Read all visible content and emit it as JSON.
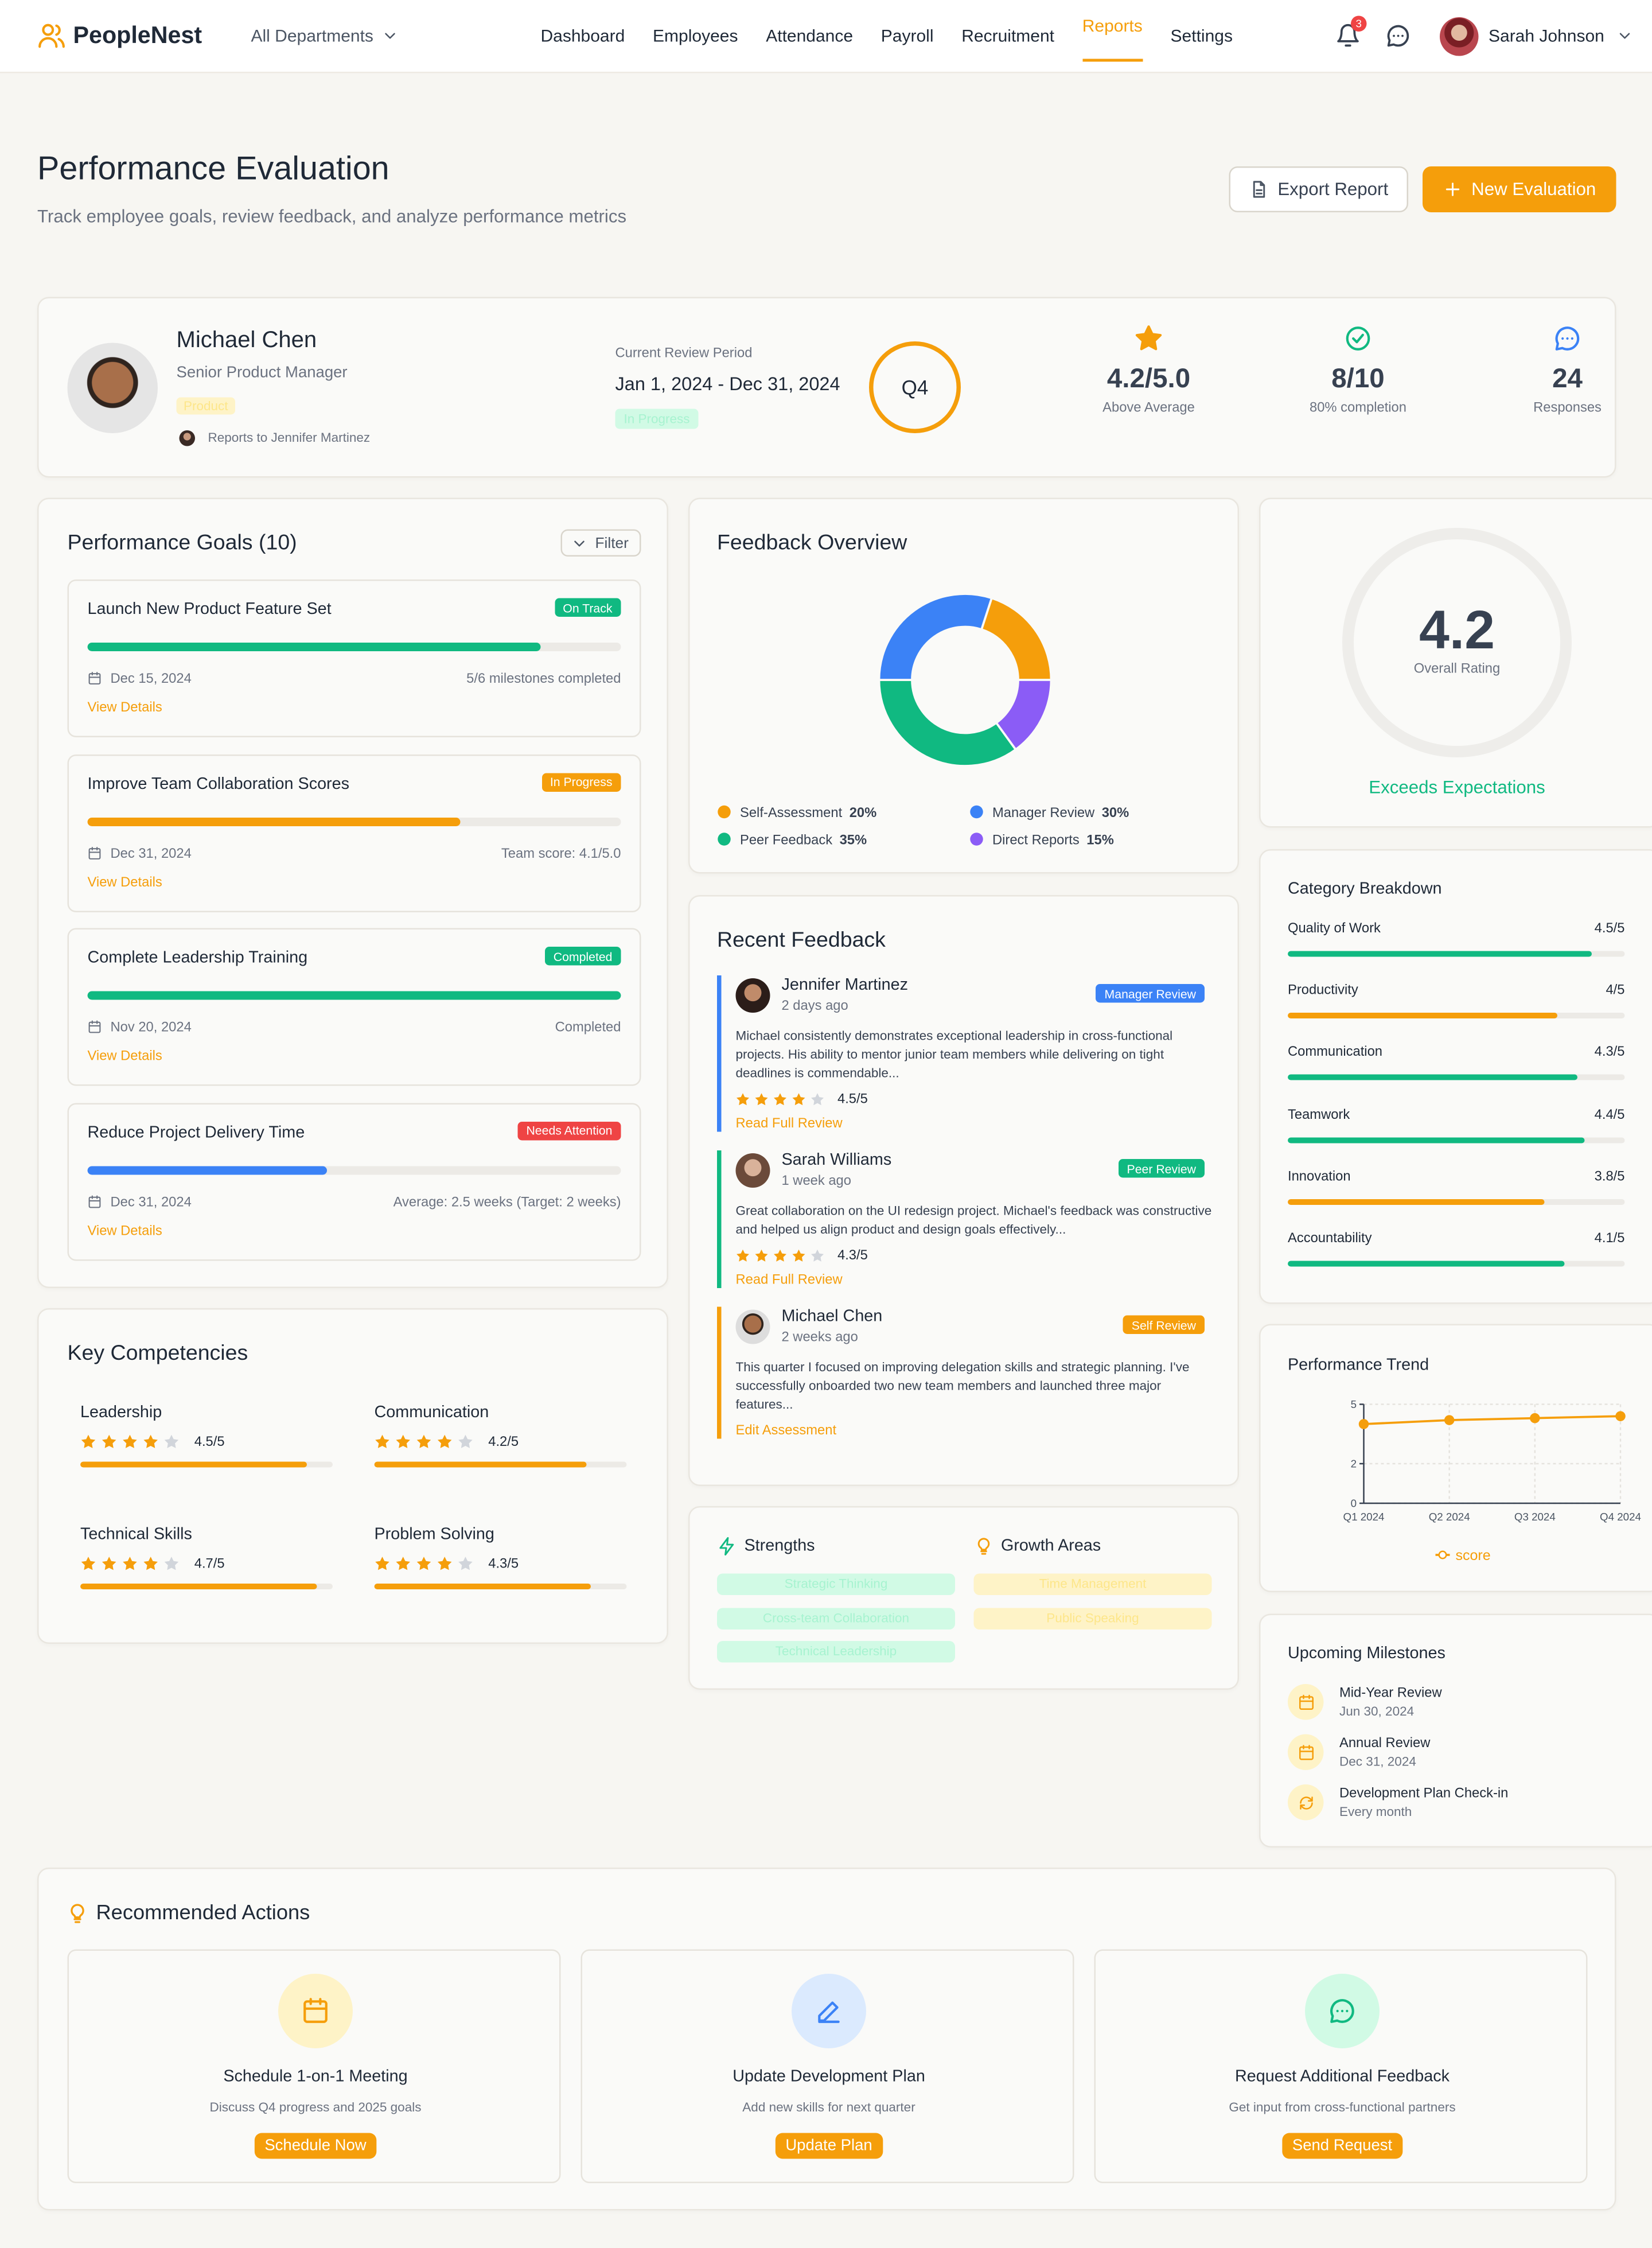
{
  "nav": {
    "brand": "PeopleNest",
    "department": "All Departments",
    "links": [
      "Dashboard",
      "Employees",
      "Attendance",
      "Payroll",
      "Recruitment",
      "Reports",
      "Settings"
    ],
    "notifications": 3,
    "user": "Sarah Johnson"
  },
  "header": {
    "title": "Performance Evaluation",
    "subtitle": "Track employee goals, review feedback, and analyze performance metrics",
    "export_button": "Export Report",
    "new_button": "New Evaluation"
  },
  "profile": {
    "name": "Michael Chen",
    "role": "Senior Product Manager",
    "department": "Product",
    "reports_to": "Reports to Jennifer Martinez",
    "period_label": "Current Review Period",
    "period": "Jan 1, 2024 - Dec 31, 2024",
    "status": "In Progress",
    "quarter": "Q4",
    "stats": [
      {
        "value": "4.2/5.0",
        "label": "Above Average",
        "color": "#f59e0b"
      },
      {
        "value": "8/10",
        "label": "80% completion",
        "color": "#10b981"
      },
      {
        "value": "24",
        "label": "Responses",
        "color": "#3b82f6"
      }
    ]
  },
  "goals": {
    "title": "Performance Goals (10)",
    "filter": "Filter",
    "items": [
      {
        "name": "Launch New Product Feature Set",
        "status": "On Track",
        "status_color": "#10b981",
        "progress": 85,
        "color": "#10b981",
        "date": "Dec 15, 2024",
        "detail": "5/6 milestones completed",
        "link": "View Details"
      },
      {
        "name": "Improve Team Collaboration Scores",
        "status": "In Progress",
        "status_color": "#f59e0b",
        "progress": 70,
        "color": "#f59e0b",
        "date": "Dec 31, 2024",
        "detail": "Team score: 4.1/5.0",
        "link": "View Details"
      },
      {
        "name": "Complete Leadership Training",
        "status": "Completed",
        "status_color": "#10b981",
        "progress": 100,
        "color": "#10b981",
        "date": "Nov 20, 2024",
        "detail": "Completed",
        "link": "View Details"
      },
      {
        "name": "Reduce Project Delivery Time",
        "status": "Needs Attention",
        "status_color": "#ef4444",
        "progress": 45,
        "color": "#3b82f6",
        "date": "Dec 31, 2024",
        "detail": "Average: 2.5 weeks (Target: 2 weeks)",
        "link": "View Details"
      }
    ]
  },
  "competencies": {
    "title": "Key Competencies",
    "scale_max": 5,
    "items": [
      {
        "name": "Leadership",
        "rating": 4.5,
        "rating_label": "4.5/5"
      },
      {
        "name": "Communication",
        "rating": 4.2,
        "rating_label": "4.2/5"
      },
      {
        "name": "Technical Skills",
        "rating": 4.7,
        "rating_label": "4.7/5"
      },
      {
        "name": "Problem Solving",
        "rating": 4.3,
        "rating_label": "4.3/5"
      }
    ]
  },
  "feedback_overview": {
    "title": "Feedback Overview",
    "chart_data": {
      "type": "pie",
      "donut": true,
      "start_angle": 18,
      "categories": [
        "Self-Assessment",
        "Direct Reports",
        "Peer Feedback",
        "Manager Review"
      ],
      "values": [
        20,
        15,
        35,
        30
      ],
      "value_labels": [
        "20%",
        "15%",
        "35%",
        "30%"
      ],
      "colors": [
        "#f59e0b",
        "#8b5cf6",
        "#10b981",
        "#3b82f6"
      ]
    }
  },
  "recent_feedback": {
    "title": "Recent Feedback",
    "items": [
      {
        "name": "Jennifer Martinez",
        "time": "2 days ago",
        "type": "Manager Review",
        "type_color": "#3b82f6",
        "text": "Michael consistently demonstrates exceptional leadership in cross-functional projects. His ability to mentor junior team members while delivering on tight deadlines is commendable...",
        "rating": 4.5,
        "rating_label": "4.5/5",
        "link": "Read Full Review"
      },
      {
        "name": "Sarah Williams",
        "time": "1 week ago",
        "type": "Peer Review",
        "type_color": "#10b981",
        "text": "Great collaboration on the UI redesign project. Michael's feedback was constructive and helped us align product and design goals effectively...",
        "rating": 4.3,
        "rating_label": "4.3/5",
        "link": "Read Full Review"
      },
      {
        "name": "Michael Chen",
        "time": "2 weeks ago",
        "type": "Self Review",
        "type_color": "#f59e0b",
        "text": "This quarter I focused on improving delegation skills and strategic planning. I've successfully onboarded two new team members and launched three major features...",
        "link": "Edit Assessment"
      }
    ]
  },
  "strengths": {
    "title": "Strengths",
    "items": [
      "Strategic Thinking",
      "Cross-team Collaboration",
      "Technical Leadership"
    ]
  },
  "growth_areas": {
    "title": "Growth Areas",
    "items": [
      "Time Management",
      "Public Speaking"
    ]
  },
  "overall": {
    "rating": 4.2,
    "label": "Overall Rating",
    "verdict": "Exceeds Expectations"
  },
  "category_breakdown": {
    "title": "Category Breakdown",
    "scale_max": 5,
    "items": [
      {
        "name": "Quality of Work",
        "score": 4.5,
        "score_label": "4.5/5",
        "color": "#10b981"
      },
      {
        "name": "Productivity",
        "score": 4,
        "score_label": "4/5",
        "color": "#f59e0b"
      },
      {
        "name": "Communication",
        "score": 4.3,
        "score_label": "4.3/5",
        "color": "#10b981"
      },
      {
        "name": "Teamwork",
        "score": 4.4,
        "score_label": "4.4/5",
        "color": "#10b981"
      },
      {
        "name": "Innovation",
        "score": 3.8,
        "score_label": "3.8/5",
        "color": "#f59e0b"
      },
      {
        "name": "Accountability",
        "score": 4.1,
        "score_label": "4.1/5",
        "color": "#10b981"
      }
    ]
  },
  "performance_trend": {
    "title": "Performance Trend",
    "chart_data": {
      "type": "line",
      "categories": [
        "Q1 2024",
        "Q2 2024",
        "Q3 2024",
        "Q4 2024"
      ],
      "series": [
        {
          "name": "score",
          "color": "#f59e0b",
          "values": [
            4.0,
            4.2,
            4.3,
            4.4
          ]
        }
      ],
      "ylim": [
        0,
        5
      ],
      "yticks": [
        0,
        2,
        5
      ],
      "grid": true
    }
  },
  "milestones": {
    "title": "Upcoming Milestones",
    "items": [
      {
        "title": "Mid-Year Review",
        "date": "Jun 30, 2024"
      },
      {
        "title": "Annual Review",
        "date": "Dec 31, 2024"
      },
      {
        "title": "Development Plan Check-in",
        "date": "Every month"
      }
    ]
  },
  "recommended": {
    "title": "Recommended Actions",
    "items": [
      {
        "title": "Schedule 1-on-1 Meeting",
        "description": "Discuss Q4 progress and 2025 goals",
        "button": "Schedule Now"
      },
      {
        "title": "Update Development Plan",
        "description": "Add new skills for next quarter",
        "button": "Update Plan"
      },
      {
        "title": "Request Additional Feedback",
        "description": "Get input from cross-functional partners",
        "button": "Send Request"
      }
    ]
  }
}
